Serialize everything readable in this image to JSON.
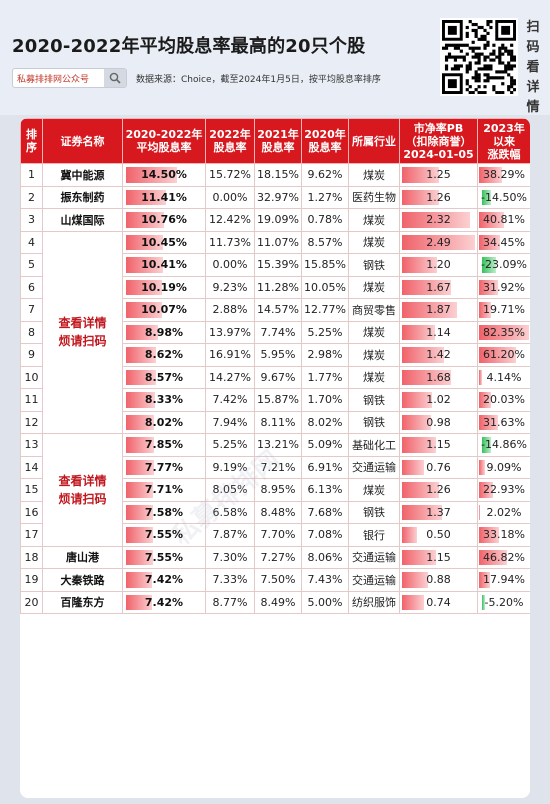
{
  "title": "2020-2022年平均股息率最高的20只个股",
  "scan_label": [
    "扫",
    "码",
    "看",
    "详",
    "情"
  ],
  "search": {
    "placeholder": "私募排排网公众号"
  },
  "source": "数据来源：Choice，截至2024年1月5日，按平均股息率排序",
  "watermark": "私募排排网",
  "columns": [
    "排序",
    "证券名称",
    "2020-2022年平均股息率",
    "2022年股息率",
    "2021年股息率",
    "2020年股息率",
    "所属行业",
    "市净率PB（扣除商誉）2024-01-05",
    "2023年以来涨跌幅"
  ],
  "column_labels": [
    [
      "排",
      "序"
    ],
    [
      "证券名称"
    ],
    [
      "2020-2022年",
      "平均股息率"
    ],
    [
      "2022年",
      "股息率"
    ],
    [
      "2021年",
      "股息率"
    ],
    [
      "2020年",
      "股息率"
    ],
    [
      "所属行业"
    ],
    [
      "市净率PB",
      "（扣除商誉）",
      "2024-01-05"
    ],
    [
      "2023年",
      "以来",
      "涨跌幅"
    ]
  ],
  "merged_labels": [
    [
      "查看详情",
      "烦请扫码"
    ],
    [
      "查看详情",
      "烦请扫码"
    ]
  ],
  "colors": {
    "header_bg": "#d7191f",
    "positive_bar": "#f0626a",
    "negative_bar": "#35c25b",
    "merged_text": "#c0181f"
  },
  "chart_data": {
    "type": "table",
    "rows": [
      {
        "rank": "1",
        "name": "冀中能源",
        "avg": "14.50%",
        "avg_v": 14.5,
        "y2022": "15.72%",
        "y2021": "18.15%",
        "y2020": "9.62%",
        "industry": "煤炭",
        "pb": "1.25",
        "pb_v": 1.25,
        "chg": "38.29%",
        "chg_v": 38.29
      },
      {
        "rank": "2",
        "name": "振东制药",
        "avg": "11.41%",
        "avg_v": 11.41,
        "y2022": "0.00%",
        "y2021": "32.97%",
        "y2020": "1.27%",
        "industry": "医药生物",
        "pb": "1.26",
        "pb_v": 1.26,
        "chg": "-14.50%",
        "chg_v": -14.5
      },
      {
        "rank": "3",
        "name": "山煤国际",
        "avg": "10.76%",
        "avg_v": 10.76,
        "y2022": "12.42%",
        "y2021": "19.09%",
        "y2020": "0.78%",
        "industry": "煤炭",
        "pb": "2.32",
        "pb_v": 2.32,
        "chg": "40.81%",
        "chg_v": 40.81
      },
      {
        "rank": "4",
        "name": "",
        "avg": "10.45%",
        "avg_v": 10.45,
        "y2022": "11.73%",
        "y2021": "11.07%",
        "y2020": "8.57%",
        "industry": "煤炭",
        "pb": "2.49",
        "pb_v": 2.49,
        "chg": "34.45%",
        "chg_v": 34.45
      },
      {
        "rank": "5",
        "name": "",
        "avg": "10.41%",
        "avg_v": 10.41,
        "y2022": "0.00%",
        "y2021": "15.39%",
        "y2020": "15.85%",
        "industry": "钢铁",
        "pb": "1.20",
        "pb_v": 1.2,
        "chg": "-23.09%",
        "chg_v": -23.09
      },
      {
        "rank": "6",
        "name": "",
        "avg": "10.19%",
        "avg_v": 10.19,
        "y2022": "9.23%",
        "y2021": "11.28%",
        "y2020": "10.05%",
        "industry": "煤炭",
        "pb": "1.67",
        "pb_v": 1.67,
        "chg": "31.92%",
        "chg_v": 31.92
      },
      {
        "rank": "7",
        "name": "",
        "avg": "10.07%",
        "avg_v": 10.07,
        "y2022": "2.88%",
        "y2021": "14.57%",
        "y2020": "12.77%",
        "industry": "商贸零售",
        "pb": "1.87",
        "pb_v": 1.87,
        "chg": "19.71%",
        "chg_v": 19.71
      },
      {
        "rank": "8",
        "name": "",
        "avg": "8.98%",
        "avg_v": 8.98,
        "y2022": "13.97%",
        "y2021": "7.74%",
        "y2020": "5.25%",
        "industry": "煤炭",
        "pb": "1.14",
        "pb_v": 1.14,
        "chg": "82.35%",
        "chg_v": 82.35
      },
      {
        "rank": "9",
        "name": "",
        "avg": "8.62%",
        "avg_v": 8.62,
        "y2022": "16.91%",
        "y2021": "5.95%",
        "y2020": "2.98%",
        "industry": "煤炭",
        "pb": "1.42",
        "pb_v": 1.42,
        "chg": "61.20%",
        "chg_v": 61.2
      },
      {
        "rank": "10",
        "name": "",
        "avg": "8.57%",
        "avg_v": 8.57,
        "y2022": "14.27%",
        "y2021": "9.67%",
        "y2020": "1.77%",
        "industry": "煤炭",
        "pb": "1.68",
        "pb_v": 1.68,
        "chg": "4.14%",
        "chg_v": 4.14
      },
      {
        "rank": "11",
        "name": "",
        "avg": "8.33%",
        "avg_v": 8.33,
        "y2022": "7.42%",
        "y2021": "15.87%",
        "y2020": "1.70%",
        "industry": "钢铁",
        "pb": "1.02",
        "pb_v": 1.02,
        "chg": "20.03%",
        "chg_v": 20.03
      },
      {
        "rank": "12",
        "name": "",
        "avg": "8.02%",
        "avg_v": 8.02,
        "y2022": "7.94%",
        "y2021": "8.11%",
        "y2020": "8.02%",
        "industry": "钢铁",
        "pb": "0.98",
        "pb_v": 0.98,
        "chg": "31.63%",
        "chg_v": 31.63
      },
      {
        "rank": "13",
        "name": "",
        "avg": "7.85%",
        "avg_v": 7.85,
        "y2022": "5.25%",
        "y2021": "13.21%",
        "y2020": "5.09%",
        "industry": "基础化工",
        "pb": "1.15",
        "pb_v": 1.15,
        "chg": "-14.86%",
        "chg_v": -14.86
      },
      {
        "rank": "14",
        "name": "",
        "avg": "7.77%",
        "avg_v": 7.77,
        "y2022": "9.19%",
        "y2021": "7.21%",
        "y2020": "6.91%",
        "industry": "交通运输",
        "pb": "0.76",
        "pb_v": 0.76,
        "chg": "9.09%",
        "chg_v": 9.09
      },
      {
        "rank": "15",
        "name": "",
        "avg": "7.71%",
        "avg_v": 7.71,
        "y2022": "8.05%",
        "y2021": "8.95%",
        "y2020": "6.13%",
        "industry": "煤炭",
        "pb": "1.26",
        "pb_v": 1.26,
        "chg": "22.93%",
        "chg_v": 22.93
      },
      {
        "rank": "16",
        "name": "",
        "avg": "7.58%",
        "avg_v": 7.58,
        "y2022": "6.58%",
        "y2021": "8.48%",
        "y2020": "7.68%",
        "industry": "钢铁",
        "pb": "1.37",
        "pb_v": 1.37,
        "chg": "2.02%",
        "chg_v": 2.02
      },
      {
        "rank": "17",
        "name": "",
        "avg": "7.55%",
        "avg_v": 7.55,
        "y2022": "7.87%",
        "y2021": "7.70%",
        "y2020": "7.08%",
        "industry": "银行",
        "pb": "0.50",
        "pb_v": 0.5,
        "chg": "33.18%",
        "chg_v": 33.18
      },
      {
        "rank": "18",
        "name": "唐山港",
        "avg": "7.55%",
        "avg_v": 7.55,
        "y2022": "7.30%",
        "y2021": "7.27%",
        "y2020": "8.06%",
        "industry": "交通运输",
        "pb": "1.15",
        "pb_v": 1.15,
        "chg": "46.82%",
        "chg_v": 46.82
      },
      {
        "rank": "19",
        "name": "大秦铁路",
        "avg": "7.42%",
        "avg_v": 7.42,
        "y2022": "7.33%",
        "y2021": "7.50%",
        "y2020": "7.43%",
        "industry": "交通运输",
        "pb": "0.88",
        "pb_v": 0.88,
        "chg": "17.94%",
        "chg_v": 17.94
      },
      {
        "rank": "20",
        "name": "百隆东方",
        "avg": "7.42%",
        "avg_v": 7.42,
        "y2022": "8.77%",
        "y2021": "8.49%",
        "y2020": "5.00%",
        "industry": "纺织服饰",
        "pb": "0.74",
        "pb_v": 0.74,
        "chg": "-5.20%",
        "chg_v": -5.2
      }
    ],
    "avg_max": 14.5,
    "pb_max": 2.49,
    "chg_max": 82.35
  }
}
